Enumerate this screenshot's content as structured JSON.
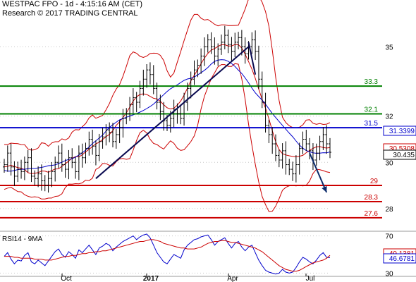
{
  "header": {
    "title": "WESTPAC FPO - 1d - 4:15:16 AM (CET)",
    "subtitle": "Research © 2017 TRADING CENTRAL"
  },
  "chart_data": [
    {
      "type": "candlestick",
      "title": "WESTPAC FPO - 1d",
      "ylim": [
        27.2,
        36.6
      ],
      "y_ticks": [
        28,
        30,
        32,
        35
      ],
      "x_ticks": [
        "Oct",
        "2017",
        "Apr",
        "Jul"
      ],
      "grid": true,
      "last_price": 30.435,
      "price_path": [
        29.9,
        30.4,
        29.8,
        29.4,
        29.7,
        29.6,
        30.0,
        30.2,
        29.4,
        29.3,
        29.5,
        29.2,
        29.0,
        29.3,
        29.6,
        30.0,
        30.4,
        29.9,
        29.7,
        30.2,
        30.0,
        29.6,
        30.4,
        30.2,
        30.6,
        31.0,
        30.7,
        30.3,
        30.9,
        31.1,
        31.4,
        31.3,
        30.9,
        31.2,
        31.5,
        31.9,
        32.1,
        32.5,
        32.8,
        32.6,
        33.2,
        33.6,
        34.0,
        33.8,
        33.2,
        32.6,
        32.2,
        31.8,
        31.6,
        31.9,
        32.3,
        32.1,
        31.9,
        32.6,
        33.2,
        33.6,
        34.0,
        34.2,
        34.6,
        35.0,
        35.3,
        35.0,
        34.6,
        34.9,
        35.2,
        35.5,
        35.1,
        34.8,
        35.2,
        35.4,
        35.0,
        34.7,
        35.0,
        35.3,
        34.8,
        33.6,
        32.6,
        31.6,
        31.2,
        30.8,
        30.3,
        30.1,
        30.5,
        29.9,
        29.7,
        29.5,
        29.9,
        30.6,
        31.0,
        30.8,
        30.5,
        30.1,
        30.4,
        30.9,
        31.2,
        30.8,
        30.435
      ],
      "support_resistance_levels": [
        {
          "label": "33.3",
          "value": 33.3,
          "color": "#008000"
        },
        {
          "label": "32.1",
          "value": 32.1,
          "color": "#008000"
        },
        {
          "label": "31.5",
          "value": 31.5,
          "color": "#0000cc"
        },
        {
          "label": "29",
          "value": 29.0,
          "color": "#cc0000"
        },
        {
          "label": "28.3",
          "value": 28.3,
          "color": "#cc0000"
        },
        {
          "label": "27.6",
          "value": 27.6,
          "color": "#cc0000"
        }
      ],
      "price_tags": [
        {
          "label": "31.3399",
          "value": 31.3399,
          "color": "#0000cc"
        },
        {
          "label": "30.5308",
          "value": 30.5308,
          "color": "#cc0000"
        },
        {
          "label": "30.435",
          "value": 30.435,
          "color": "#000000"
        }
      ],
      "trendline_up": {
        "start": {
          "bar": 27,
          "price": 29.3
        },
        "end": {
          "bar": 72,
          "price": 35.0
        }
      },
      "trendline_down": {
        "start": {
          "bar": 72,
          "price": 35.2
        },
        "end": {
          "bar": 74,
          "price": 33.8
        }
      },
      "forecast_arrow": {
        "start": {
          "bar": 90,
          "price": 30.4
        },
        "end": {
          "bar": 95,
          "price": 28.7
        }
      }
    },
    {
      "type": "line",
      "title": "RSI14 - 9MA",
      "ylim": [
        28,
        72
      ],
      "y_ticks": [
        30,
        70
      ],
      "series": [
        {
          "name": "RSI14",
          "color": "#0000cc",
          "values": [
            48,
            52,
            45,
            40,
            44,
            43,
            49,
            52,
            42,
            40,
            44,
            41,
            38,
            43,
            48,
            53,
            56,
            50,
            47,
            53,
            50,
            46,
            55,
            52,
            56,
            60,
            55,
            50,
            57,
            59,
            62,
            60,
            54,
            58,
            61,
            64,
            66,
            68,
            70,
            66,
            69,
            71,
            72,
            68,
            60,
            52,
            47,
            42,
            40,
            45,
            50,
            48,
            46,
            55,
            60,
            63,
            66,
            67,
            69,
            70,
            71,
            66,
            60,
            64,
            66,
            68,
            62,
            57,
            62,
            64,
            58,
            54,
            58,
            60,
            52,
            44,
            38,
            33,
            31,
            30,
            29,
            30,
            34,
            31,
            30,
            31,
            36,
            42,
            47,
            45,
            42,
            40,
            44,
            49,
            52,
            47,
            46.6781
          ]
        },
        {
          "name": "9MA",
          "color": "#cc0000",
          "values": [
            48,
            48,
            48,
            47,
            47,
            46,
            46,
            46,
            46,
            45,
            45,
            45,
            44,
            44,
            44,
            45,
            46,
            47,
            48,
            48,
            49,
            49,
            50,
            51,
            51,
            52,
            52,
            53,
            53,
            54,
            54,
            55,
            56,
            57,
            58,
            59,
            60,
            61,
            62,
            63,
            64,
            64,
            65,
            66,
            66,
            65,
            64,
            62,
            61,
            60,
            59,
            58,
            57,
            57,
            56,
            56,
            56,
            57,
            58,
            60,
            62,
            63,
            64,
            64,
            65,
            65,
            64,
            63,
            63,
            62,
            61,
            60,
            59,
            58,
            57,
            55,
            53,
            50,
            47,
            44,
            41,
            38,
            36,
            34,
            33,
            32,
            32,
            33,
            35,
            37,
            39,
            41,
            42,
            43,
            44,
            46,
            49.1381
          ]
        }
      ],
      "price_tags": [
        {
          "label": "49.1381",
          "value": 49.1381,
          "color": "#cc0000"
        },
        {
          "label": "46.6781",
          "value": 46.6781,
          "color": "#0000cc"
        }
      ]
    }
  ]
}
